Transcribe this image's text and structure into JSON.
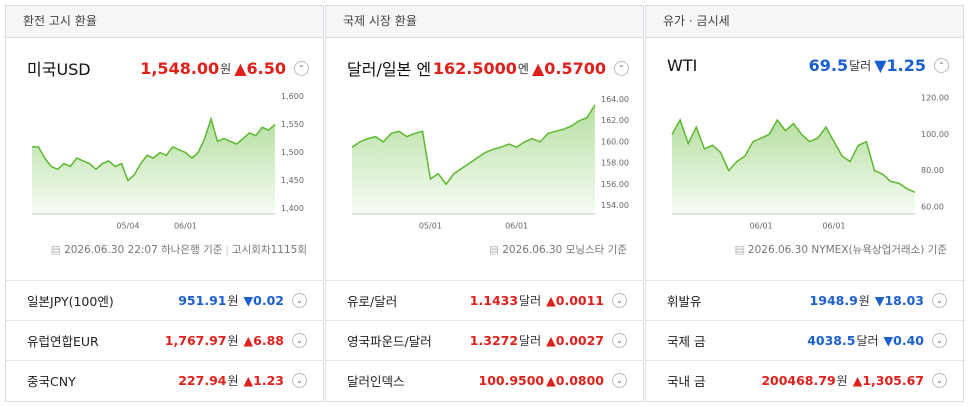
{
  "panels": [
    {
      "header": "환전 고시 환율",
      "main": {
        "name": "미국USD",
        "value": "1,548.00",
        "unit": "원",
        "change": "▲6.50",
        "color": "#e0201b"
      },
      "source": [
        "2026.06.30 22:07 하나은행 기준",
        "고시회차1115회"
      ],
      "rows": [
        {
          "name": "일본JPY(100엔)",
          "value": "951.91",
          "unit": "원",
          "change": "▼0.02",
          "color": "#1a5fd0"
        },
        {
          "name": "유럽연합EUR",
          "value": "1,767.97",
          "unit": "원",
          "change": "▲6.88",
          "color": "#e0201b"
        },
        {
          "name": "중국CNY",
          "value": "227.94",
          "unit": "원",
          "change": "▲1.23",
          "color": "#e0201b"
        }
      ]
    },
    {
      "header": "국제 시장 환율",
      "main": {
        "name": "달러/일본 엔",
        "value": "162.5000",
        "unit": "엔",
        "change": "▲0.5700",
        "color": "#e0201b"
      },
      "source": [
        "2026.06.30 모닝스타 기준"
      ],
      "rows": [
        {
          "name": "유로/달러",
          "value": "1.1433",
          "unit": "달러",
          "change": "▲0.0011",
          "color": "#e0201b"
        },
        {
          "name": "영국파운드/달러",
          "value": "1.3272",
          "unit": "달러",
          "change": "▲0.0027",
          "color": "#e0201b"
        },
        {
          "name": "달러인덱스",
          "value": "100.9500",
          "change": "▲0.0800",
          "color": "#e0201b"
        }
      ]
    },
    {
      "header": "유가 · 금시세",
      "main": {
        "name": "WTI",
        "value": "69.5",
        "unit": "달러",
        "change": "▼1.25",
        "color": "#1a5fd0"
      },
      "source": [
        "2026.06.30 NYMEX(뉴욕상업거래소) 기준"
      ],
      "rows": [
        {
          "name": "휘발유",
          "value": "1948.9",
          "unit": "원",
          "change": "▼18.03",
          "color": "#1a5fd0"
        },
        {
          "name": "국제 금",
          "value": "4038.5",
          "unit": "달러",
          "change": "▼0.40",
          "color": "#1a5fd0"
        },
        {
          "name": "국내 금",
          "value": "200468.79",
          "unit": "원",
          "change": "▲1,305.67",
          "color": "#e0201b"
        }
      ]
    }
  ],
  "chart_data": [
    {
      "type": "line",
      "color": "#5cb82e",
      "grid": false,
      "x": [
        null,
        null,
        null,
        null,
        null,
        null,
        null,
        null,
        null,
        null,
        null,
        null,
        null,
        null,
        null,
        "05/04",
        null,
        null,
        null,
        null,
        null,
        null,
        null,
        null,
        "06/01",
        null,
        null,
        null,
        null,
        null,
        null,
        null,
        null,
        null,
        null,
        null,
        null,
        null,
        null
      ],
      "values": [
        1510,
        1510,
        1490,
        1475,
        1470,
        1480,
        1475,
        1490,
        1485,
        1480,
        1470,
        1480,
        1485,
        1475,
        1480,
        1450,
        1460,
        1480,
        1495,
        1490,
        1500,
        1495,
        1510,
        1505,
        1500,
        1490,
        1500,
        1525,
        1560,
        1520,
        1525,
        1520,
        1515,
        1525,
        1535,
        1530,
        1545,
        1540,
        1550
      ],
      "ylim": [
        1390,
        1610
      ],
      "yticks": [
        {
          "value": 1600,
          "label": "1,600"
        },
        {
          "value": 1550,
          "label": "1,550"
        },
        {
          "value": 1500,
          "label": "1,500"
        },
        {
          "value": 1450,
          "label": "1,450"
        },
        {
          "value": 1400,
          "label": "1,400"
        }
      ]
    },
    {
      "type": "line",
      "color": "#5cb82e",
      "grid": false,
      "x": [
        null,
        null,
        null,
        null,
        null,
        null,
        null,
        null,
        null,
        null,
        "05/01",
        null,
        null,
        null,
        null,
        null,
        null,
        null,
        null,
        null,
        null,
        "06/01",
        null,
        null,
        null,
        null,
        null,
        null,
        null,
        null,
        null,
        null
      ],
      "values": [
        159.5,
        160,
        160.3,
        160.5,
        160,
        160.8,
        161,
        160.5,
        160.8,
        161,
        156.5,
        157,
        156,
        157,
        157.5,
        158,
        158.5,
        159,
        159.3,
        159.5,
        159.8,
        159.5,
        160,
        160.3,
        160,
        160.8,
        161,
        161.2,
        161.5,
        162,
        162.3,
        163.5
      ],
      "ylim": [
        153.2,
        164.8
      ],
      "yticks": [
        {
          "value": 164,
          "label": "164.00"
        },
        {
          "value": 162,
          "label": "162.00"
        },
        {
          "value": 160,
          "label": "160.00"
        },
        {
          "value": 158,
          "label": "158.00"
        },
        {
          "value": 156,
          "label": "156.00"
        },
        {
          "value": 154,
          "label": "154.00"
        }
      ]
    },
    {
      "type": "line",
      "color": "#5cb82e",
      "grid": false,
      "x": [
        null,
        null,
        null,
        null,
        null,
        null,
        null,
        null,
        null,
        null,
        null,
        "06/01",
        null,
        null,
        null,
        null,
        null,
        null,
        null,
        null,
        "06/01",
        null,
        null,
        null,
        null,
        null,
        null,
        null,
        null,
        null,
        null
      ],
      "values": [
        100,
        108,
        95,
        104,
        92,
        94,
        90,
        80,
        85,
        88,
        96,
        98,
        100,
        108,
        102,
        106,
        100,
        96,
        98,
        104,
        96,
        88,
        85,
        94,
        96,
        80,
        78,
        74,
        73,
        70,
        68
      ],
      "ylim": [
        56,
        124
      ],
      "yticks": [
        {
          "value": 120,
          "label": "120.00"
        },
        {
          "value": 100,
          "label": "100.00"
        },
        {
          "value": 80,
          "label": "80.00"
        },
        {
          "value": 60,
          "label": "60.00"
        }
      ]
    }
  ]
}
